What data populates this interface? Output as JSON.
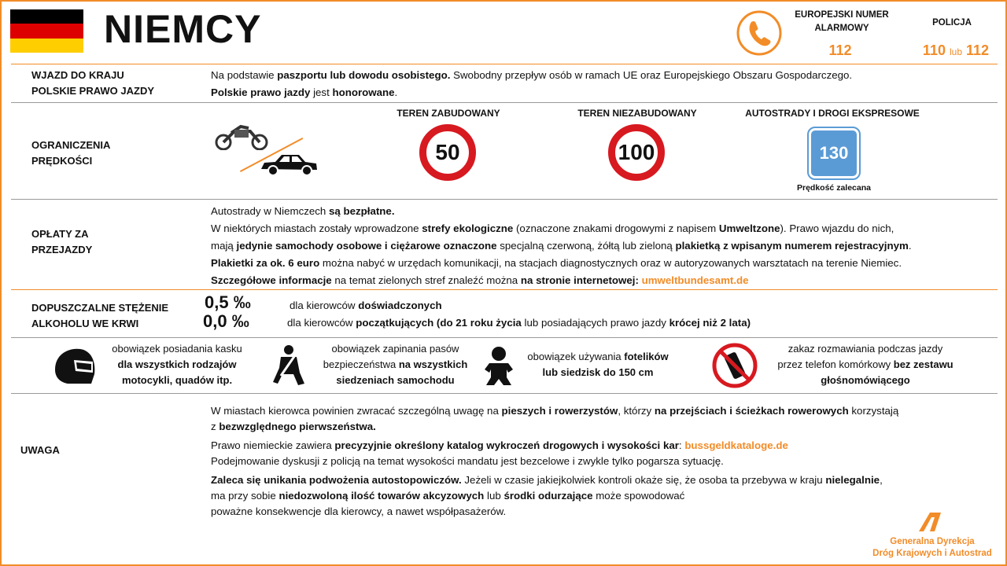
{
  "header": {
    "title": "NIEMCY",
    "flag_colors": [
      "#000000",
      "#dd0000",
      "#ffce00"
    ],
    "emergency_label_1": "EUROPEJSKI  NUMER",
    "emergency_label_2": "ALARMOWY",
    "emergency_number": "112",
    "police_label": "POLICJA",
    "police_number_1": "110",
    "police_or": "lub",
    "police_number_2": "112",
    "accent": "#f28c28"
  },
  "entry": {
    "label_1": "WJAZD DO KRAJU",
    "label_2": "POLSKIE PRAWO JAZDY",
    "lines": [
      [
        {
          "t": "Na podstawie "
        },
        {
          "t": "paszportu lub dowodu osobistego.",
          "b": 1
        },
        {
          "t": " Swobodny przepływ  osób w ramach UE oraz Europejskiego Obszaru Gospodarczego."
        }
      ],
      [
        {
          "t": "Polskie prawo jazdy",
          "b": 1
        },
        {
          "t": " jest "
        },
        {
          "t": "honorowane",
          "b": 1
        },
        {
          "t": "."
        }
      ]
    ]
  },
  "speed": {
    "label_1": "OGRANICZENIA",
    "label_2": "PRĘDKOŚCI",
    "urban_label": "TEREN ZABUDOWANY",
    "urban_limit": "50",
    "rural_label": "TEREN NIEZABUDOWANY",
    "rural_limit": "100",
    "motorway_label": "AUTOSTRADY I DROGI EKSPRESOWE",
    "motorway_limit": "130",
    "motorway_note": "Prędkość zalecana"
  },
  "tolls": {
    "label_1": "OPŁATY ZA",
    "label_2": "PRZEJAZDY",
    "lines": [
      [
        {
          "t": "Autostrady w Niemczech "
        },
        {
          "t": "są bezpłatne.",
          "b": 1
        }
      ],
      [
        {
          "t": "W niektórych miastach zostały wprowadzone  "
        },
        {
          "t": "strefy ekologiczne",
          "b": 1
        },
        {
          "t": " (oznaczone znakami drogowymi  z napisem "
        },
        {
          "t": "Umweltzone",
          "b": 1
        },
        {
          "t": "). Prawo wjazdu do nich,"
        }
      ],
      [
        {
          "t": "mają "
        },
        {
          "t": "jedynie samochody osobowe i ciężarowe oznaczone",
          "b": 1
        },
        {
          "t": " specjalną czerwoną, żółtą lub zieloną "
        },
        {
          "t": "plakietką z wpisanym numerem rejestracyjnym",
          "b": 1
        },
        {
          "t": "."
        }
      ],
      [
        {
          "t": "Plakietki za ok. 6 euro",
          "b": 1
        },
        {
          "t": " można nabyć w urzędach  komunikacji,  na stacjach diagnostycznych oraz w autoryzowanych  warsztatach na terenie Niemiec."
        }
      ],
      [
        {
          "t": "Szczegółowe informacje",
          "b": 1
        },
        {
          "t": " na temat zielonych stref znaleźć można  "
        },
        {
          "t": "na stronie internetowej:",
          "b": 1
        },
        {
          "t": " "
        },
        {
          "t": "umweltbundesamt.de",
          "l": 1
        }
      ]
    ]
  },
  "alcohol": {
    "label_1": "DOPUSZCZALNE STĘŻENIE",
    "label_2": "ALKOHOLU WE KRWI",
    "limit_1": "0,5 ‰",
    "limit_2": "0,0 ‰",
    "line_1": [
      {
        "t": "dla kierowców  "
      },
      {
        "t": "doświadczonych",
        "b": 1
      }
    ],
    "line_2": [
      {
        "t": "dla kierowców  "
      },
      {
        "t": "początkujących (do 21 roku życia",
        "b": 1
      },
      {
        "t": " lub posiadających prawo jazdy "
      },
      {
        "t": "krócej niż 2 lata)",
        "b": 1
      }
    ]
  },
  "rules": [
    {
      "icon": "helmet-icon",
      "lines": [
        [
          {
            "t": "obowiązek posiadania kasku"
          }
        ],
        [
          {
            "t": "dla wszystkich rodzajów",
            "b": 1
          }
        ],
        [
          {
            "t": "motocykli, quadów itp.",
            "b": 1
          }
        ]
      ]
    },
    {
      "icon": "seatbelt-icon",
      "lines": [
        [
          {
            "t": "obowiązek zapinania pasów"
          }
        ],
        [
          {
            "t": "bezpieczeństwa "
          },
          {
            "t": "na wszystkich",
            "b": 1
          }
        ],
        [
          {
            "t": "siedzeniach samochodu",
            "b": 1
          }
        ]
      ]
    },
    {
      "icon": "child-seat-icon",
      "lines": [
        [
          {
            "t": "obowiązek używania "
          },
          {
            "t": "fotelików",
            "b": 1
          }
        ],
        [
          {
            "t": "lub siedzisk do 150 cm",
            "b": 1
          }
        ]
      ]
    },
    {
      "icon": "no-phone-icon",
      "lines": [
        [
          {
            "t": "zakaz rozmawiania  podczas jazdy"
          }
        ],
        [
          {
            "t": "przez telefon komórkowy  "
          },
          {
            "t": "bez zestawu",
            "b": 1
          }
        ],
        [
          {
            "t": "głośnomówiącego",
            "b": 1
          }
        ]
      ]
    }
  ],
  "notes": {
    "label": "UWAGA",
    "paras": [
      [
        [
          {
            "t": "W miastach kierowca powinien  zwracać szczególną uwagę na "
          },
          {
            "t": "pieszych i rowerzystów",
            "b": 1
          },
          {
            "t": ", którzy "
          },
          {
            "t": "na przejściach i ścieżkach rowerowych",
            "b": 1
          },
          {
            "t": " korzystają"
          }
        ],
        [
          {
            "t": "z "
          },
          {
            "t": "bezwzględnego pierwszeństwa.",
            "b": 1
          }
        ]
      ],
      [
        [
          {
            "t": "Prawo niemieckie zawiera "
          },
          {
            "t": "precyzyjnie określony katalog wykroczeń drogowych i wysokości kar",
            "b": 1
          },
          {
            "t": ": "
          },
          {
            "t": "bussgeldkataloge.de",
            "l": 1
          }
        ],
        [
          {
            "t": "Podejmowanie  dyskusji z policją na temat  wysokości mandatu  jest bezcelowe i zwykle tylko pogarsza sytuację."
          }
        ]
      ],
      [
        [
          {
            "t": "Zaleca się unikania podwożenia autostopowiczów.",
            "b": 1
          },
          {
            "t": " Jeżeli w czasie jakiejkolwiek kontroli  okaże się, że osoba ta przebywa  w kraju "
          },
          {
            "t": "nielegalnie",
            "b": 1
          },
          {
            "t": ","
          }
        ],
        [
          {
            "t": "ma przy sobie "
          },
          {
            "t": "niedozwoloną ilość towarów akcyzowych",
            "b": 1
          },
          {
            "t": " lub "
          },
          {
            "t": "środki odurzające",
            "b": 1
          },
          {
            "t": " może spowodować"
          }
        ],
        [
          {
            "t": "poważne konsekwencje dla kierowcy, a nawet współpasażerów."
          }
        ]
      ]
    ]
  },
  "footer": {
    "org_1": "Generalna Dyrekcja",
    "org_2": "Dróg Krajowych i Autostrad"
  }
}
